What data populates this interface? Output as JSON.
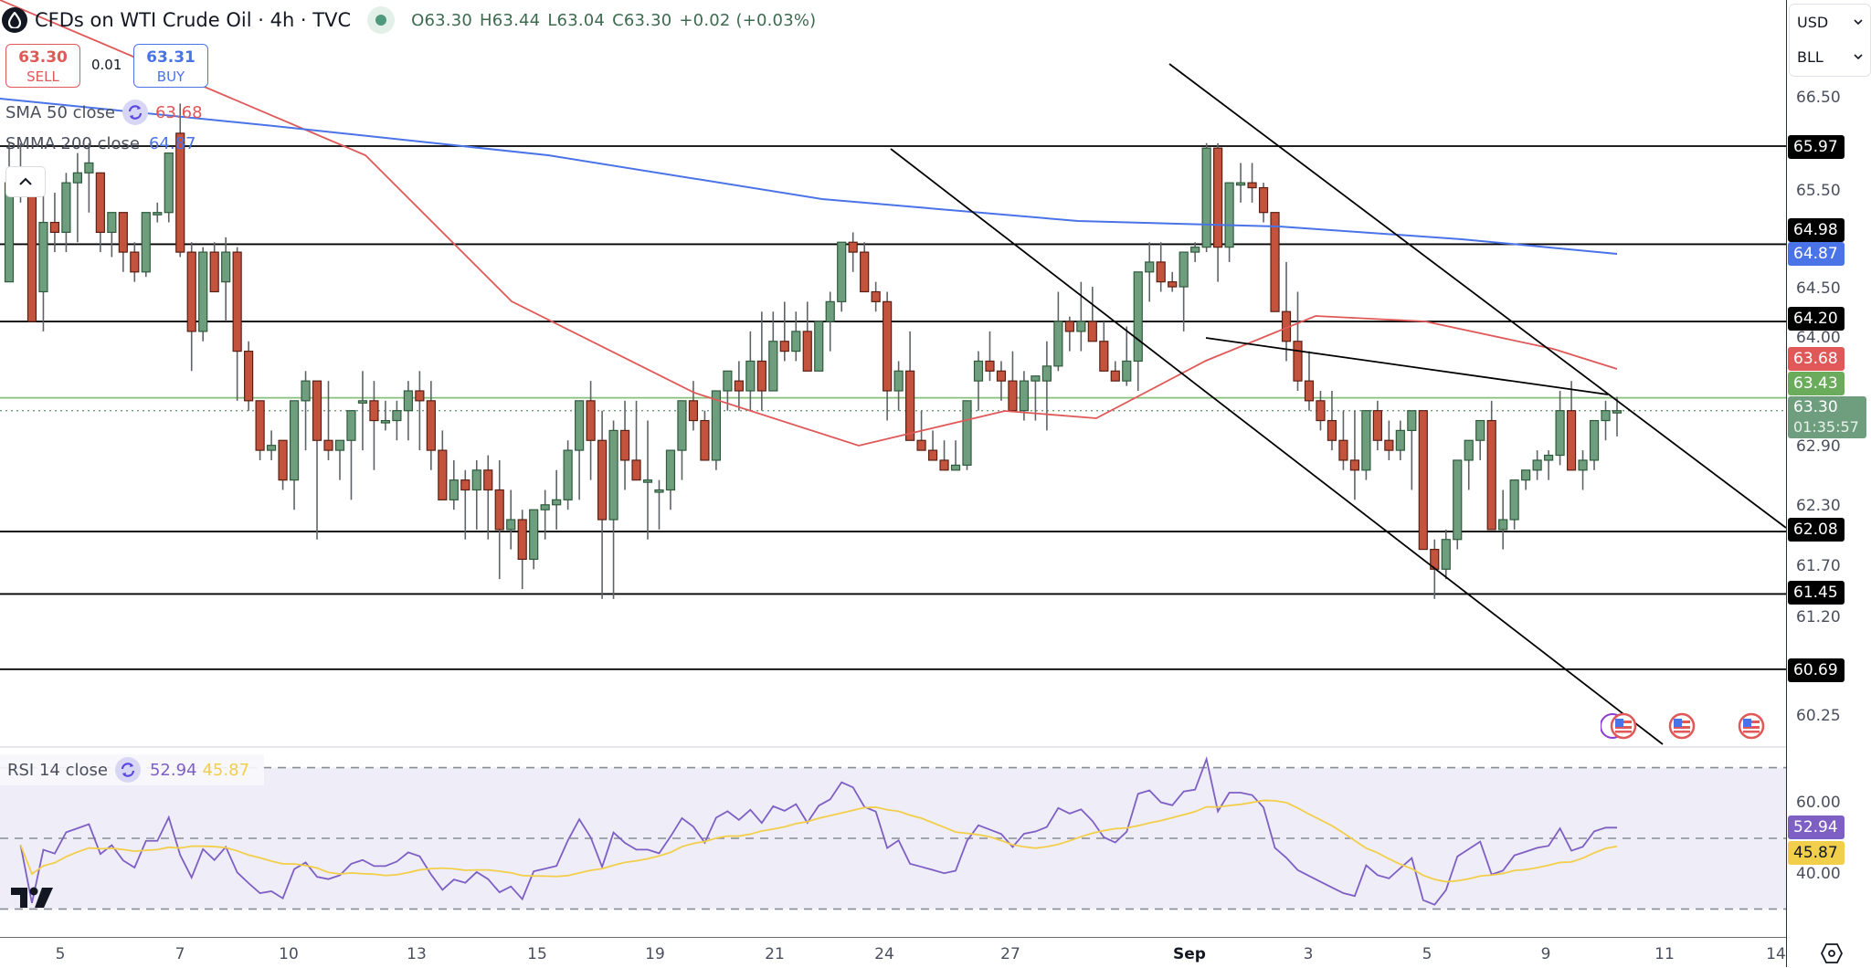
{
  "header": {
    "symbol_title": "CFDs on WTI Crude Oil · 4h · TVC",
    "symbol_icon": "oil-drop-icon",
    "market_status": "open",
    "ohlc": {
      "open": "O63.30",
      "high": "H63.44",
      "low": "L63.04",
      "close": "C63.30",
      "change": "+0.02 (+0.03%)"
    }
  },
  "trade": {
    "sell_price": "63.30",
    "sell_label": "SELL",
    "spread": "0.01",
    "buy_price": "63.31",
    "buy_label": "BUY"
  },
  "indicators": {
    "sma": {
      "label": "SMA 50 close",
      "value": "63.68",
      "color": "#e05858"
    },
    "smma": {
      "label": "SMMA 200 close",
      "value": "64.87",
      "color": "#4a73e8"
    },
    "rsi": {
      "label": "RSI 14 close",
      "value": "52.94",
      "ma_value": "45.87",
      "color": "#7e5fc4",
      "ma_color": "#f2cf4a"
    }
  },
  "collapse_button": "^",
  "price_axis": {
    "currency": "USD",
    "unit": "BLL",
    "ticks": [
      "66.50",
      "65.50",
      "64.50",
      "64.00",
      "62.90",
      "62.30",
      "61.70",
      "61.20",
      "60.25"
    ],
    "level_tags": [
      "65.97",
      "64.98",
      "64.20",
      "62.08",
      "61.45",
      "60.69"
    ],
    "smma_tag": "64.87",
    "sma_tag": "63.68",
    "high_tag": "63.43",
    "current_price": "63.30",
    "countdown": "01:35:57"
  },
  "rsi_axis": {
    "ticks": [
      "60.00",
      "40.00"
    ],
    "rsi_tag": "52.94",
    "ma_tag": "45.87"
  },
  "time_axis": {
    "ticks": [
      "5",
      "7",
      "10",
      "13",
      "15",
      "19",
      "21",
      "24",
      "27",
      "Sep",
      "3",
      "5",
      "9",
      "11",
      "14"
    ]
  },
  "colors": {
    "up": "#6e9e7e",
    "down": "#c4533d",
    "sma": "#e05858",
    "smma": "#4a73e8",
    "rsi": "#7e5fc4",
    "rsi_ma": "#f2cf4a",
    "high_line": "#86c07a"
  },
  "chart_data": {
    "type": "candlestick",
    "title": "CFDs on WTI Crude Oil · 4h · TVC",
    "xlabel": "",
    "ylabel": "USD / BLL",
    "ylim": [
      60.0,
      66.8
    ],
    "x_ticks": [
      "5",
      "7",
      "10",
      "13",
      "15",
      "19",
      "21",
      "24",
      "27",
      "Sep",
      "3",
      "5",
      "9",
      "11",
      "14"
    ],
    "horizontal_levels": [
      65.97,
      64.98,
      64.2,
      62.08,
      61.45,
      60.69
    ],
    "trendlines": [
      {
        "name": "channel-upper",
        "from": [
          1280,
          70
        ],
        "to": [
          1955,
          578
        ]
      },
      {
        "name": "channel-lower",
        "from": [
          975,
          163
        ],
        "to": [
          1820,
          815
        ]
      },
      {
        "name": "upper-short",
        "from": [
          1320,
          370
        ],
        "to": [
          1760,
          432
        ]
      }
    ],
    "candles": [
      [
        64.6,
        66.0,
        64.6,
        65.6
      ],
      [
        65.6,
        66.0,
        65.4,
        65.5
      ],
      [
        65.5,
        65.4,
        64.2,
        64.2
      ],
      [
        64.5,
        65.6,
        64.1,
        65.2
      ],
      [
        65.2,
        65.5,
        64.9,
        65.1
      ],
      [
        65.1,
        65.7,
        64.9,
        65.6
      ],
      [
        65.6,
        65.9,
        65.0,
        65.7
      ],
      [
        65.7,
        66.0,
        65.3,
        65.8
      ],
      [
        65.7,
        65.7,
        64.9,
        65.1
      ],
      [
        65.1,
        65.2,
        64.85,
        65.3
      ],
      [
        65.3,
        65.3,
        64.7,
        64.9
      ],
      [
        64.9,
        65.0,
        64.6,
        64.7
      ],
      [
        64.7,
        65.3,
        64.65,
        65.3
      ],
      [
        65.3,
        65.4,
        65.2,
        65.3
      ],
      [
        65.3,
        65.9,
        65.2,
        65.9
      ],
      [
        66.1,
        66.4,
        64.85,
        64.9
      ],
      [
        64.9,
        65.0,
        63.7,
        64.1
      ],
      [
        64.1,
        64.95,
        64.0,
        64.9
      ],
      [
        64.9,
        65.0,
        64.5,
        64.5
      ],
      [
        64.6,
        65.05,
        64.2,
        64.9
      ],
      [
        64.9,
        64.95,
        63.4,
        63.9
      ],
      [
        63.9,
        64.0,
        63.3,
        63.4
      ],
      [
        63.4,
        63.4,
        62.8,
        62.9
      ],
      [
        62.9,
        63.1,
        62.8,
        62.95
      ],
      [
        63.0,
        63.0,
        62.5,
        62.6
      ],
      [
        62.6,
        63.0,
        62.3,
        63.4
      ],
      [
        63.4,
        63.7,
        62.9,
        63.6
      ],
      [
        63.6,
        63.6,
        62.0,
        63.0
      ],
      [
        63.0,
        63.6,
        62.8,
        62.9
      ],
      [
        62.9,
        63.0,
        62.6,
        63.0
      ],
      [
        63.0,
        63.2,
        62.4,
        63.3
      ],
      [
        63.4,
        63.7,
        62.9,
        63.4
      ],
      [
        63.4,
        63.6,
        62.7,
        63.2
      ],
      [
        63.2,
        63.4,
        63.1,
        63.2
      ],
      [
        63.2,
        63.4,
        63.0,
        63.3
      ],
      [
        63.3,
        63.6,
        63.0,
        63.5
      ],
      [
        63.5,
        63.7,
        62.9,
        63.4
      ],
      [
        63.4,
        63.6,
        62.7,
        62.9
      ],
      [
        62.9,
        63.1,
        62.5,
        62.4
      ],
      [
        62.4,
        62.8,
        62.3,
        62.6
      ],
      [
        62.6,
        62.7,
        62.0,
        62.5
      ],
      [
        62.5,
        62.8,
        62.1,
        62.7
      ],
      [
        62.7,
        62.85,
        62.0,
        62.5
      ],
      [
        62.5,
        62.8,
        61.6,
        62.1
      ],
      [
        62.1,
        62.5,
        61.9,
        62.2
      ],
      [
        62.2,
        62.3,
        61.5,
        61.8
      ],
      [
        61.8,
        62.1,
        61.7,
        62.3
      ],
      [
        62.3,
        62.5,
        62.0,
        62.35
      ],
      [
        62.35,
        62.7,
        62.1,
        62.4
      ],
      [
        62.4,
        63.0,
        62.3,
        62.9
      ],
      [
        62.9,
        63.1,
        62.4,
        63.4
      ],
      [
        63.4,
        63.6,
        62.6,
        63.0
      ],
      [
        63.0,
        63.3,
        61.4,
        62.2
      ],
      [
        62.2,
        63.2,
        61.4,
        63.1
      ],
      [
        63.1,
        63.4,
        62.5,
        62.8
      ],
      [
        62.8,
        63.4,
        62.7,
        62.6
      ],
      [
        62.6,
        63.2,
        62.0,
        62.6
      ],
      [
        62.5,
        62.6,
        62.1,
        62.5
      ],
      [
        62.5,
        62.9,
        62.3,
        62.9
      ],
      [
        62.9,
        63.0,
        62.6,
        63.4
      ],
      [
        63.4,
        63.6,
        63.1,
        63.2
      ],
      [
        63.2,
        63.3,
        62.8,
        62.8
      ],
      [
        62.8,
        63.4,
        62.7,
        63.5
      ],
      [
        63.5,
        63.7,
        63.3,
        63.7
      ],
      [
        63.6,
        63.8,
        63.3,
        63.5
      ],
      [
        63.5,
        64.1,
        63.3,
        63.8
      ],
      [
        63.8,
        64.3,
        63.3,
        63.5
      ],
      [
        63.5,
        64.3,
        63.5,
        64.0
      ],
      [
        64.0,
        64.4,
        63.8,
        63.9
      ],
      [
        63.9,
        64.3,
        63.8,
        64.1
      ],
      [
        64.1,
        64.4,
        63.7,
        63.7
      ],
      [
        63.7,
        64.2,
        63.7,
        64.2
      ],
      [
        64.2,
        64.5,
        63.9,
        64.4
      ],
      [
        64.4,
        64.9,
        64.3,
        65.0
      ],
      [
        65.0,
        65.1,
        64.7,
        64.9
      ],
      [
        64.9,
        65.0,
        64.5,
        64.5
      ],
      [
        64.5,
        64.6,
        64.3,
        64.4
      ],
      [
        64.4,
        64.5,
        63.2,
        63.5
      ],
      [
        63.5,
        63.8,
        63.3,
        63.7
      ],
      [
        63.7,
        64.1,
        63.0,
        63.0
      ],
      [
        63.0,
        63.3,
        62.9,
        62.9
      ],
      [
        62.9,
        63.1,
        62.8,
        62.8
      ],
      [
        62.8,
        63.0,
        62.75,
        62.7
      ],
      [
        62.7,
        63.0,
        62.8,
        62.75
      ],
      [
        62.75,
        63.4,
        62.7,
        63.4
      ],
      [
        63.6,
        63.9,
        63.3,
        63.8
      ],
      [
        63.8,
        64.1,
        63.6,
        63.7
      ],
      [
        63.7,
        63.8,
        63.4,
        63.6
      ],
      [
        63.6,
        63.9,
        63.3,
        63.3
      ],
      [
        63.3,
        63.7,
        63.2,
        63.6
      ],
      [
        63.6,
        63.6,
        63.2,
        63.65
      ],
      [
        63.6,
        64.0,
        63.1,
        63.75
      ],
      [
        63.75,
        64.5,
        63.7,
        64.2
      ],
      [
        64.2,
        64.25,
        63.9,
        64.1
      ],
      [
        64.1,
        64.6,
        63.9,
        64.2
      ],
      [
        64.2,
        64.55,
        64.0,
        64.0
      ],
      [
        64.0,
        64.2,
        63.7,
        63.7
      ],
      [
        63.7,
        63.8,
        63.6,
        63.6
      ],
      [
        63.6,
        64.15,
        63.55,
        63.8
      ],
      [
        63.8,
        64.2,
        63.5,
        64.7
      ],
      [
        64.7,
        65.0,
        64.4,
        64.8
      ],
      [
        64.8,
        65.0,
        64.5,
        64.6
      ],
      [
        64.6,
        64.7,
        64.5,
        64.55
      ],
      [
        64.55,
        64.9,
        64.1,
        64.9
      ],
      [
        64.9,
        65.0,
        64.8,
        64.95
      ],
      [
        64.95,
        66.0,
        64.9,
        65.95
      ],
      [
        65.95,
        66.0,
        64.6,
        64.95
      ],
      [
        64.95,
        65.6,
        64.8,
        65.6
      ],
      [
        65.6,
        65.8,
        65.4,
        65.6
      ],
      [
        65.6,
        65.8,
        65.4,
        65.55
      ],
      [
        65.55,
        65.6,
        65.2,
        65.3
      ],
      [
        65.3,
        65.2,
        64.3,
        64.3
      ],
      [
        64.3,
        64.8,
        63.8,
        64.0
      ],
      [
        64.0,
        64.5,
        63.5,
        63.6
      ],
      [
        63.6,
        63.9,
        63.3,
        63.4
      ],
      [
        63.4,
        63.5,
        63.1,
        63.2
      ],
      [
        63.2,
        63.5,
        62.9,
        63.0
      ],
      [
        63.0,
        63.3,
        62.7,
        62.8
      ],
      [
        62.8,
        63.3,
        62.4,
        62.7
      ],
      [
        62.7,
        63.2,
        62.6,
        63.3
      ],
      [
        63.3,
        63.4,
        62.9,
        63.0
      ],
      [
        63.0,
        63.2,
        62.8,
        62.9
      ],
      [
        62.9,
        63.2,
        62.8,
        63.1
      ],
      [
        63.1,
        63.2,
        62.5,
        63.3
      ],
      [
        63.3,
        63.3,
        62.1,
        61.9
      ],
      [
        61.9,
        62.0,
        61.4,
        61.7
      ],
      [
        61.7,
        62.1,
        61.6,
        62.0
      ],
      [
        62.0,
        62.8,
        61.9,
        62.8
      ],
      [
        62.8,
        63.0,
        62.5,
        63.0
      ],
      [
        63.0,
        63.2,
        62.8,
        63.2
      ],
      [
        63.2,
        63.4,
        62.1,
        62.1
      ],
      [
        62.1,
        62.5,
        61.9,
        62.2
      ],
      [
        62.2,
        62.6,
        62.1,
        62.6
      ],
      [
        62.6,
        62.7,
        62.5,
        62.7
      ],
      [
        62.7,
        62.9,
        62.6,
        62.8
      ],
      [
        62.8,
        62.9,
        62.6,
        62.85
      ],
      [
        62.85,
        63.5,
        62.75,
        63.3
      ],
      [
        63.3,
        63.6,
        62.7,
        62.7
      ],
      [
        62.7,
        62.9,
        62.5,
        62.8
      ],
      [
        62.8,
        63.2,
        62.7,
        63.2
      ],
      [
        63.2,
        63.4,
        63.0,
        63.3
      ],
      [
        63.3,
        63.44,
        63.04,
        63.3
      ]
    ],
    "overlays": [
      {
        "name": "SMA 50 close",
        "last": 63.68
      },
      {
        "name": "SMMA 200 close",
        "last": 64.87
      }
    ],
    "rsi_panel": {
      "label": "RSI 14 close",
      "ylim": [
        25,
        75
      ],
      "bands": [
        70,
        50,
        30
      ],
      "ticks": [
        60,
        40
      ],
      "rsi_last": 52.94,
      "rsi_ma_last": 45.87
    },
    "annotations": [
      "US economic event flags near Sep 10-13"
    ]
  }
}
